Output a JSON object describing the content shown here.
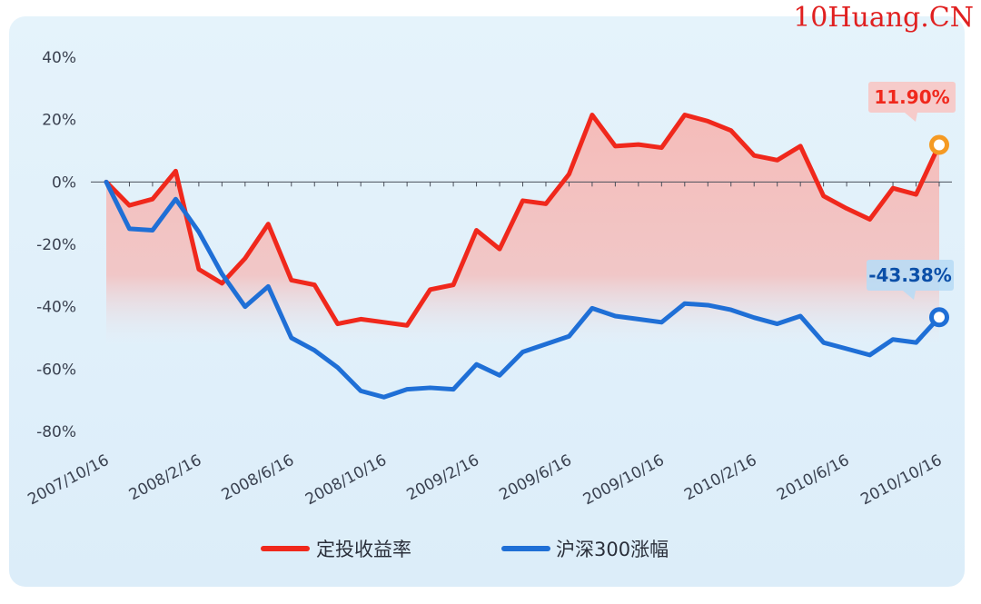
{
  "watermark": "10Huang.CN",
  "colors": {
    "red": "#f0281c",
    "blue": "#1f6fd6",
    "red_area_top": "#f6b9b6",
    "red_area_bottom": "#e4f1fb",
    "callout_red_bg": "#f7c6c4",
    "callout_blue_bg": "#b9dcf5",
    "orange_marker": "#f59a23"
  },
  "chart_data": {
    "type": "line",
    "title": "",
    "xlabel": "",
    "ylabel": "",
    "ylim": [
      -80,
      40
    ],
    "yticks": [
      40,
      20,
      0,
      -20,
      -40,
      -60,
      -80
    ],
    "ytick_labels": [
      "40%",
      "20%",
      "0%",
      "-20%",
      "-40%",
      "-60%",
      "-80%"
    ],
    "xtick_labels": [
      "2007/10/16",
      "2008/2/16",
      "2008/6/16",
      "2008/10/16",
      "2009/2/16",
      "2009/6/16",
      "2009/10/16",
      "2010/2/16",
      "2010/6/16",
      "2010/10/16"
    ],
    "xtick_index": [
      0,
      4,
      8,
      12,
      16,
      20,
      24,
      28,
      32,
      36
    ],
    "grid": false,
    "legend_position": "bottom",
    "series": [
      {
        "name": "定投收益率",
        "color": "#f0281c",
        "area": true,
        "values": [
          0,
          -7.5,
          -5.5,
          3.5,
          -28,
          -32.5,
          -24.5,
          -13.5,
          -31.5,
          -33,
          -45.5,
          -44,
          -45,
          -46,
          -34.5,
          -33,
          -15.5,
          -21.5,
          -6,
          -7,
          2.5,
          21.5,
          11.5,
          12,
          11,
          21.5,
          19.5,
          16.5,
          8.5,
          7,
          11.5,
          -4.5,
          -8.5,
          -12,
          -2,
          -4,
          11.9
        ]
      },
      {
        "name": "沪深300涨幅",
        "color": "#1f6fd6",
        "area": false,
        "values": [
          0,
          -15,
          -15.5,
          -5.5,
          -16,
          -29.5,
          -40,
          -33.5,
          -50,
          -54,
          -59.5,
          -67,
          -69,
          -66.5,
          -66,
          -66.5,
          -58.5,
          -62,
          -54.5,
          -52,
          -49.5,
          -40.5,
          -43,
          -44,
          -45,
          -39,
          -39.5,
          -41,
          -43.5,
          -45.5,
          -43,
          -51.5,
          -53.5,
          -55.5,
          -50.5,
          -51.5,
          -43.38
        ]
      }
    ],
    "annotations": [
      {
        "series": "定投收益率",
        "label": "11.90%"
      },
      {
        "series": "沪深300涨幅",
        "label": "-43.38%"
      }
    ]
  }
}
